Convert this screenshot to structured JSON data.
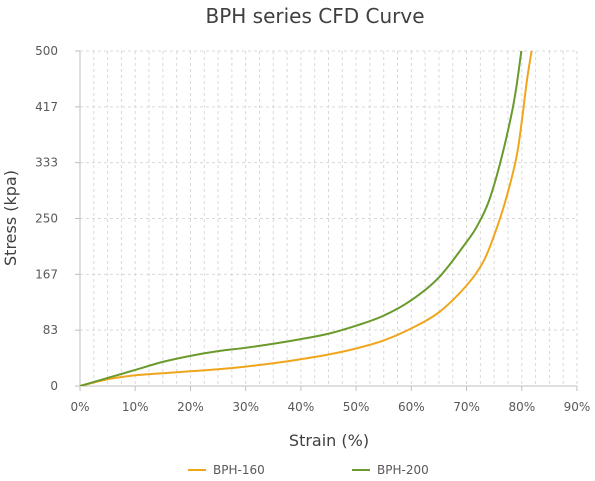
{
  "chart_data": {
    "type": "line",
    "title": "BPH series CFD Curve",
    "xlabel": "Strain (%)",
    "ylabel": "Stress (kpa)",
    "xlim": [
      0,
      90
    ],
    "ylim": [
      0,
      500
    ],
    "x_ticks": [
      "0%",
      "10%",
      "20%",
      "30%",
      "40%",
      "50%",
      "60%",
      "70%",
      "80%",
      "90%"
    ],
    "x_tick_values": [
      0,
      10,
      20,
      30,
      40,
      50,
      60,
      70,
      80,
      90
    ],
    "y_ticks": [
      "0",
      "83",
      "167",
      "250",
      "333",
      "417",
      "500"
    ],
    "y_tick_values": [
      0,
      83.33,
      166.67,
      250,
      333.33,
      416.67,
      500
    ],
    "grid": "dashed",
    "legend_position": "bottom",
    "series": [
      {
        "name": "BPH-160",
        "color": "#f0a61c",
        "x": [
          0,
          5,
          10,
          15,
          20,
          25,
          30,
          35,
          40,
          45,
          50,
          55,
          60,
          65,
          70,
          73,
          75,
          77,
          79,
          80,
          81,
          82
        ],
        "y": [
          0,
          10,
          16,
          19,
          22,
          25,
          29,
          34,
          40,
          47,
          56,
          68,
          86,
          110,
          150,
          185,
          225,
          275,
          340,
          395,
          460,
          510
        ]
      },
      {
        "name": "BPH-200",
        "color": "#6a9a2c",
        "x": [
          0,
          5,
          10,
          15,
          20,
          25,
          30,
          35,
          40,
          45,
          50,
          55,
          60,
          65,
          70,
          72,
          74,
          76,
          78,
          79,
          80
        ],
        "y": [
          0,
          12,
          24,
          36,
          45,
          52,
          57,
          63,
          70,
          78,
          90,
          105,
          128,
          162,
          215,
          240,
          275,
          330,
          400,
          445,
          505
        ]
      }
    ]
  }
}
